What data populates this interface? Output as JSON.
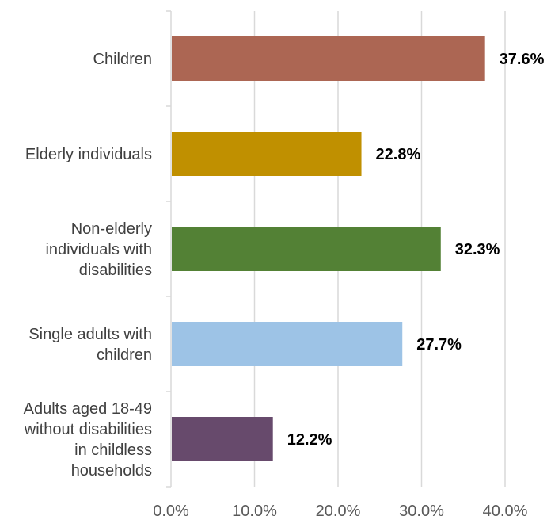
{
  "chart_data": {
    "type": "bar",
    "orientation": "horizontal",
    "title": "",
    "xlabel": "",
    "ylabel": "",
    "xlim": [
      0,
      40
    ],
    "x_ticks": [
      "0.0%",
      "10.0%",
      "20.0%",
      "30.0%",
      "40.0%"
    ],
    "grid": true,
    "categories": [
      [
        "Children"
      ],
      [
        "Elderly individuals"
      ],
      [
        "Non-elderly",
        "individuals with",
        "disabilities"
      ],
      [
        "Single adults with",
        "children"
      ],
      [
        "Adults aged 18-49",
        "without disabilities",
        "in childless",
        "households"
      ]
    ],
    "values": [
      37.6,
      22.8,
      32.3,
      27.7,
      12.2
    ],
    "value_labels": [
      "37.6%",
      "22.8%",
      "32.3%",
      "27.7%",
      "12.2%"
    ],
    "colors": [
      "#ac6653",
      "#c09000",
      "#538135",
      "#9dc3e6",
      "#674a6c"
    ]
  }
}
